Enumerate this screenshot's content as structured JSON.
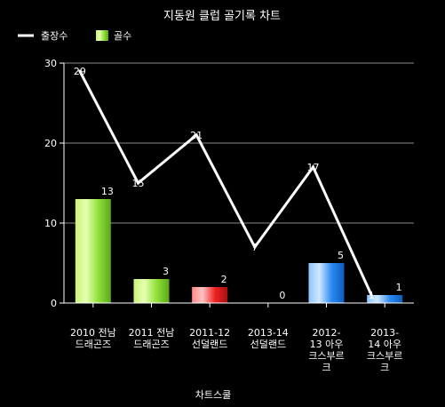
{
  "chart_data": {
    "type": "bar",
    "title": "지동원 클럽 골기록 차트",
    "xlabel": "차트스쿨",
    "ylabel": "",
    "ylim": [
      0,
      30
    ],
    "yticks": [
      0,
      10,
      20,
      30
    ],
    "grid": true,
    "legend_position": "top-left",
    "categories": [
      [
        "2010 전남",
        "드래곤즈"
      ],
      [
        "2011 전남",
        "드래곤즈"
      ],
      [
        "2011-12",
        "선덜랜드"
      ],
      [
        "2013-14",
        "선덜랜드"
      ],
      [
        "2012-",
        "13  아우",
        "크스부르",
        "크"
      ],
      [
        "2013-",
        "14  아우",
        "크스부르",
        "크"
      ]
    ],
    "series": [
      {
        "name": "출장수",
        "type": "line",
        "color": "#ffffff",
        "values": [
          29,
          15,
          21,
          7,
          17,
          1
        ]
      },
      {
        "name": "골수",
        "type": "bar",
        "values": [
          13,
          3,
          2,
          0,
          5,
          1
        ],
        "colors": [
          "#8fe03a",
          "#8fe03a",
          "#ee2222",
          "#8fe03a",
          "#2a8af0",
          "#2a8af0"
        ]
      }
    ]
  }
}
